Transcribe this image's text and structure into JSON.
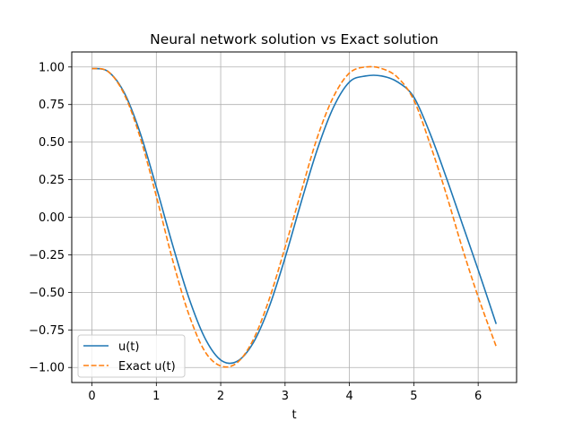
{
  "chart_data": {
    "type": "line",
    "title": "Neural network solution vs Exact solution",
    "xlabel": "t",
    "ylabel": "",
    "xlim": [
      -0.314,
      6.597
    ],
    "ylim": [
      -1.1,
      1.1
    ],
    "grid": true,
    "legend_position": "lower-left",
    "x_ticks": [
      0,
      1,
      2,
      3,
      4,
      5,
      6
    ],
    "x_tick_labels": [
      "0",
      "1",
      "2",
      "3",
      "4",
      "5",
      "6"
    ],
    "y_ticks": [
      1.0,
      0.75,
      0.5,
      0.25,
      0.0,
      -0.25,
      -0.5,
      -0.75,
      -1.0
    ],
    "y_tick_labels": [
      "1.00",
      "0.75",
      "0.50",
      "0.25",
      "0.00",
      "−0.25",
      "−0.50",
      "−0.75",
      "−1.00"
    ],
    "x": [
      0.0,
      0.25,
      0.5,
      0.75,
      1.0,
      1.25,
      1.5,
      1.75,
      2.0,
      2.25,
      2.5,
      2.75,
      3.0,
      3.25,
      3.5,
      3.75,
      4.0,
      4.25,
      4.5,
      4.75,
      5.0,
      5.25,
      5.5,
      5.75,
      6.0,
      6.28
    ],
    "series": [
      {
        "name": "u(t)",
        "color": "#1f77b4",
        "style": "solid",
        "values": [
          0.99,
          0.97,
          0.83,
          0.56,
          0.2,
          -0.18,
          -0.53,
          -0.8,
          -0.95,
          -0.96,
          -0.84,
          -0.6,
          -0.27,
          0.1,
          0.45,
          0.73,
          0.9,
          0.94,
          0.94,
          0.9,
          0.8,
          0.56,
          0.27,
          -0.04,
          -0.35,
          -0.71
        ]
      },
      {
        "name": "Exact u(t)",
        "color": "#ff7f0e",
        "style": "dashed",
        "values": [
          0.99,
          0.97,
          0.82,
          0.53,
          0.14,
          -0.28,
          -0.64,
          -0.89,
          -0.99,
          -0.97,
          -0.82,
          -0.55,
          -0.2,
          0.17,
          0.53,
          0.8,
          0.96,
          1.0,
          0.99,
          0.93,
          0.78,
          0.49,
          0.16,
          -0.2,
          -0.53,
          -0.86
        ]
      }
    ]
  }
}
